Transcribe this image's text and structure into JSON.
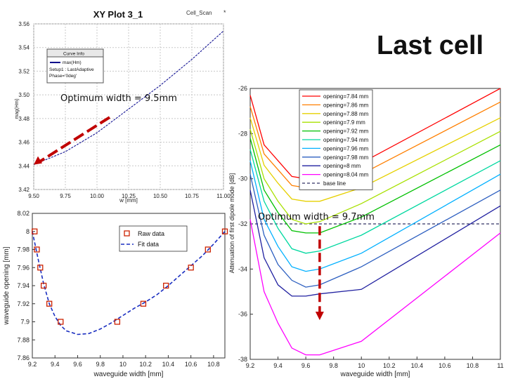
{
  "slide": {
    "title": "Last cell",
    "note_left": "Optimum width = 9.5mm",
    "note_right": "Optimum width = 9.7mm"
  },
  "colors": {
    "arrow": "#c00000",
    "dark_blue": "#00008b",
    "fit": "#1a2ec0",
    "marker": "#cc2200"
  },
  "chart_data": [
    {
      "type": "line",
      "title": "XY Plot 3_1",
      "corner_label": "Cell_Scan",
      "xlabel": "w [mm]",
      "ylabel": "mag(Hm)",
      "xlim": [
        9.5,
        11.0
      ],
      "ylim": [
        3.42,
        3.56
      ],
      "xticks": [
        "9.50",
        "9.75",
        "10.00",
        "10.25",
        "10.50",
        "10.75",
        "11.00"
      ],
      "yticks": [
        "3.42",
        "3.44",
        "3.46",
        "3.48",
        "3.50",
        "3.52",
        "3.54",
        "3.56"
      ],
      "legend": {
        "heading": "Curve Info",
        "entry": "max(Hm)",
        "setup_line": "Setup1 : LastAdaptive",
        "phase_line": "Phase='0deg'"
      },
      "series": [
        {
          "name": "max(Hm)",
          "x": [
            9.5,
            9.75,
            10.0,
            10.25,
            10.5,
            10.75,
            11.0
          ],
          "y": [
            3.441,
            3.452,
            3.468,
            3.488,
            3.508,
            3.53,
            3.554
          ]
        }
      ],
      "annotation": {
        "arrow_from": [
          10.1,
          3.481
        ],
        "arrow_to": [
          9.5,
          3.441
        ]
      }
    },
    {
      "type": "scatter",
      "xlabel": "waveguide width [mm]",
      "ylabel": "waveguide opening [mm]",
      "xlim": [
        9.2,
        10.9
      ],
      "ylim": [
        7.86,
        8.02
      ],
      "xticks": [
        "9.2",
        "9.4",
        "9.6",
        "9.8",
        "10",
        "10.2",
        "10.4",
        "10.6",
        "10.8"
      ],
      "yticks": [
        "7.86",
        "7.88",
        "7.9",
        "7.92",
        "7.94",
        "7.96",
        "7.98",
        "8",
        "8.02"
      ],
      "series": [
        {
          "name": "Raw data",
          "style": "markers",
          "x": [
            9.22,
            9.24,
            9.27,
            9.3,
            9.35,
            9.45,
            9.95,
            10.18,
            10.38,
            10.6,
            10.75,
            10.9
          ],
          "y": [
            8.0,
            7.98,
            7.96,
            7.94,
            7.92,
            7.9,
            7.9,
            7.92,
            7.94,
            7.96,
            7.98,
            8.0
          ]
        },
        {
          "name": "Fit data",
          "style": "dashed",
          "x": [
            9.2,
            9.25,
            9.3,
            9.35,
            9.4,
            9.45,
            9.5,
            9.6,
            9.7,
            9.8,
            9.9,
            10.0,
            10.1,
            10.2,
            10.3,
            10.4,
            10.5,
            10.6,
            10.7,
            10.8,
            10.9
          ],
          "y": [
            8.0,
            7.97,
            7.942,
            7.92,
            7.906,
            7.896,
            7.89,
            7.886,
            7.887,
            7.892,
            7.899,
            7.907,
            7.915,
            7.922,
            7.93,
            7.94,
            7.951,
            7.962,
            7.973,
            7.986,
            8.0
          ]
        }
      ],
      "legend": [
        "Raw data",
        "Fit data"
      ]
    },
    {
      "type": "line",
      "xlabel": "waveguide width [mm]",
      "ylabel": "Attenuation of first dipole mode [dB]",
      "xlim": [
        9.2,
        11.0
      ],
      "ylim": [
        -38,
        -26
      ],
      "xticks": [
        "9.2",
        "9.4",
        "9.6",
        "9.8",
        "10",
        "10.2",
        "10.4",
        "10.6",
        "10.8",
        "11"
      ],
      "yticks": [
        "-26",
        "-28",
        "-30",
        "-32",
        "-34",
        "-36",
        "-38"
      ],
      "x": [
        9.2,
        9.3,
        9.4,
        9.5,
        9.6,
        9.7,
        10.0,
        11.0
      ],
      "series": [
        {
          "name": "opening=7.84 mm",
          "color": "#ff0000",
          "values": [
            -26.3,
            -28.5,
            -29.2,
            -29.9,
            -30.0,
            -30.0,
            -29.3,
            -26.0
          ]
        },
        {
          "name": "opening=7.86 mm",
          "color": "#ff7f00",
          "values": [
            -26.8,
            -28.9,
            -29.6,
            -30.3,
            -30.4,
            -30.4,
            -29.8,
            -26.6
          ]
        },
        {
          "name": "opening=7.88 mm",
          "color": "#e6d000",
          "values": [
            -27.3,
            -29.4,
            -30.2,
            -30.9,
            -31.0,
            -31.0,
            -30.4,
            -27.3
          ]
        },
        {
          "name": "opening=7.9 mm",
          "color": "#a8e000",
          "values": [
            -27.8,
            -30.0,
            -31.0,
            -31.8,
            -32.0,
            -31.9,
            -31.1,
            -27.9
          ]
        },
        {
          "name": "opening=7.92 mm",
          "color": "#00c000",
          "values": [
            -28.2,
            -30.5,
            -31.5,
            -32.3,
            -32.4,
            -32.4,
            -31.7,
            -28.5
          ]
        },
        {
          "name": "opening=7.94 mm",
          "color": "#00d8a0",
          "values": [
            -28.7,
            -31.0,
            -32.2,
            -33.1,
            -33.3,
            -33.2,
            -32.5,
            -29.2
          ]
        },
        {
          "name": "opening=7.96 mm",
          "color": "#00b0ff",
          "values": [
            -29.2,
            -31.8,
            -33.0,
            -33.9,
            -34.1,
            -34.0,
            -33.3,
            -29.8
          ]
        },
        {
          "name": "opening=7.98 mm",
          "color": "#2d5fc0",
          "values": [
            -29.8,
            -32.5,
            -33.8,
            -34.5,
            -34.8,
            -34.7,
            -33.9,
            -30.5
          ]
        },
        {
          "name": "opening=8 mm",
          "color": "#2020a0",
          "values": [
            -30.5,
            -33.5,
            -34.7,
            -35.2,
            -35.2,
            -35.1,
            -34.9,
            -31.2
          ]
        },
        {
          "name": "opening=8.04 mm",
          "color": "#ff00ff",
          "values": [
            -31.8,
            -35.0,
            -36.4,
            -37.5,
            -37.8,
            -37.8,
            -37.2,
            -32.4
          ]
        }
      ],
      "base_line": {
        "name": "base line",
        "value": -32.0,
        "color": "#333366"
      },
      "annotation": {
        "arrow_from": [
          9.7,
          -32.1
        ],
        "arrow_to": [
          9.7,
          -36.2
        ]
      }
    }
  ]
}
